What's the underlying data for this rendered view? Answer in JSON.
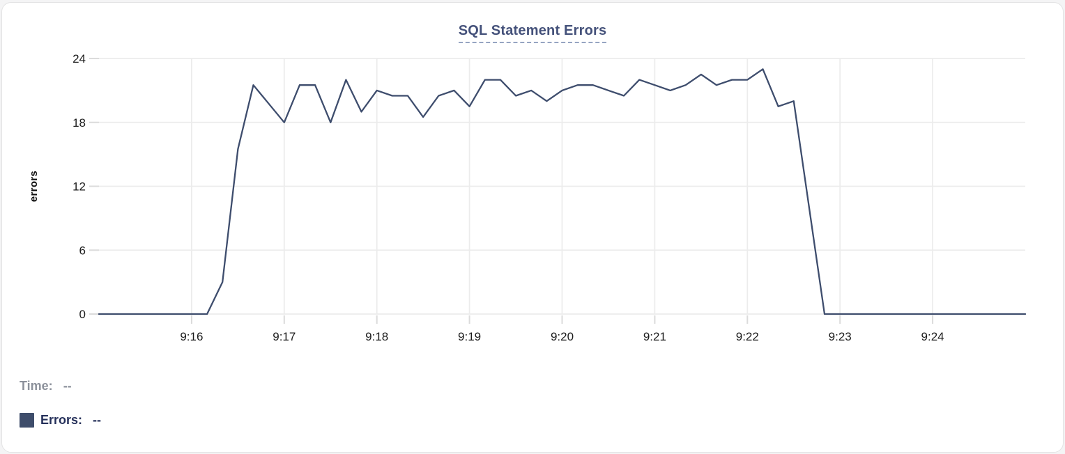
{
  "chart_data": {
    "type": "line",
    "title": "SQL Statement Errors",
    "xlabel": "",
    "ylabel": "errors",
    "y_ticks": [
      0,
      6,
      12,
      18,
      24
    ],
    "y_range": [
      0,
      24
    ],
    "x_ticks": [
      "9:16",
      "9:17",
      "9:18",
      "9:19",
      "9:20",
      "9:21",
      "9:22",
      "9:23",
      "9:24"
    ],
    "x_range": [
      "9:15:00",
      "9:25:00"
    ],
    "grid": true,
    "legend_position": "none",
    "series": [
      {
        "name": "Errors",
        "color": "#3E4D6D",
        "points": [
          [
            "9:15:00",
            0
          ],
          [
            "9:16:10",
            0
          ],
          [
            "9:16:20",
            3
          ],
          [
            "9:16:30",
            15.5
          ],
          [
            "9:16:40",
            21.5
          ],
          [
            "9:17:00",
            18
          ],
          [
            "9:17:10",
            21.5
          ],
          [
            "9:17:20",
            21.5
          ],
          [
            "9:17:30",
            18
          ],
          [
            "9:17:40",
            22
          ],
          [
            "9:17:50",
            19
          ],
          [
            "9:18:00",
            21
          ],
          [
            "9:18:10",
            20.5
          ],
          [
            "9:18:20",
            20.5
          ],
          [
            "9:18:30",
            18.5
          ],
          [
            "9:18:40",
            20.5
          ],
          [
            "9:18:50",
            21
          ],
          [
            "9:19:00",
            19.5
          ],
          [
            "9:19:10",
            22
          ],
          [
            "9:19:20",
            22
          ],
          [
            "9:19:30",
            20.5
          ],
          [
            "9:19:40",
            21
          ],
          [
            "9:19:50",
            20
          ],
          [
            "9:20:00",
            21
          ],
          [
            "9:20:10",
            21.5
          ],
          [
            "9:20:20",
            21.5
          ],
          [
            "9:20:30",
            21
          ],
          [
            "9:20:40",
            20.5
          ],
          [
            "9:20:50",
            22
          ],
          [
            "9:21:00",
            21.5
          ],
          [
            "9:21:10",
            21
          ],
          [
            "9:21:20",
            21.5
          ],
          [
            "9:21:30",
            22.5
          ],
          [
            "9:21:40",
            21.5
          ],
          [
            "9:21:50",
            22
          ],
          [
            "9:22:00",
            22
          ],
          [
            "9:22:10",
            23
          ],
          [
            "9:22:20",
            19.5
          ],
          [
            "9:22:30",
            20
          ],
          [
            "9:22:40",
            10
          ],
          [
            "9:22:50",
            0
          ],
          [
            "9:25:00",
            0
          ]
        ]
      }
    ]
  },
  "readout": {
    "time_label": "Time:",
    "time_value": "--",
    "errors_label": "Errors:",
    "errors_value": "--",
    "swatch_color": "#3E4D6B"
  },
  "colors": {
    "line": "#3E4D6D",
    "title": "#44517A",
    "title_underline": "#96A4C2",
    "grid": "#ECECEC",
    "tick": "#DBDBDB",
    "axis_text": "#1B1B1B",
    "time_text": "#8C919B",
    "errors_text": "#25305A"
  }
}
